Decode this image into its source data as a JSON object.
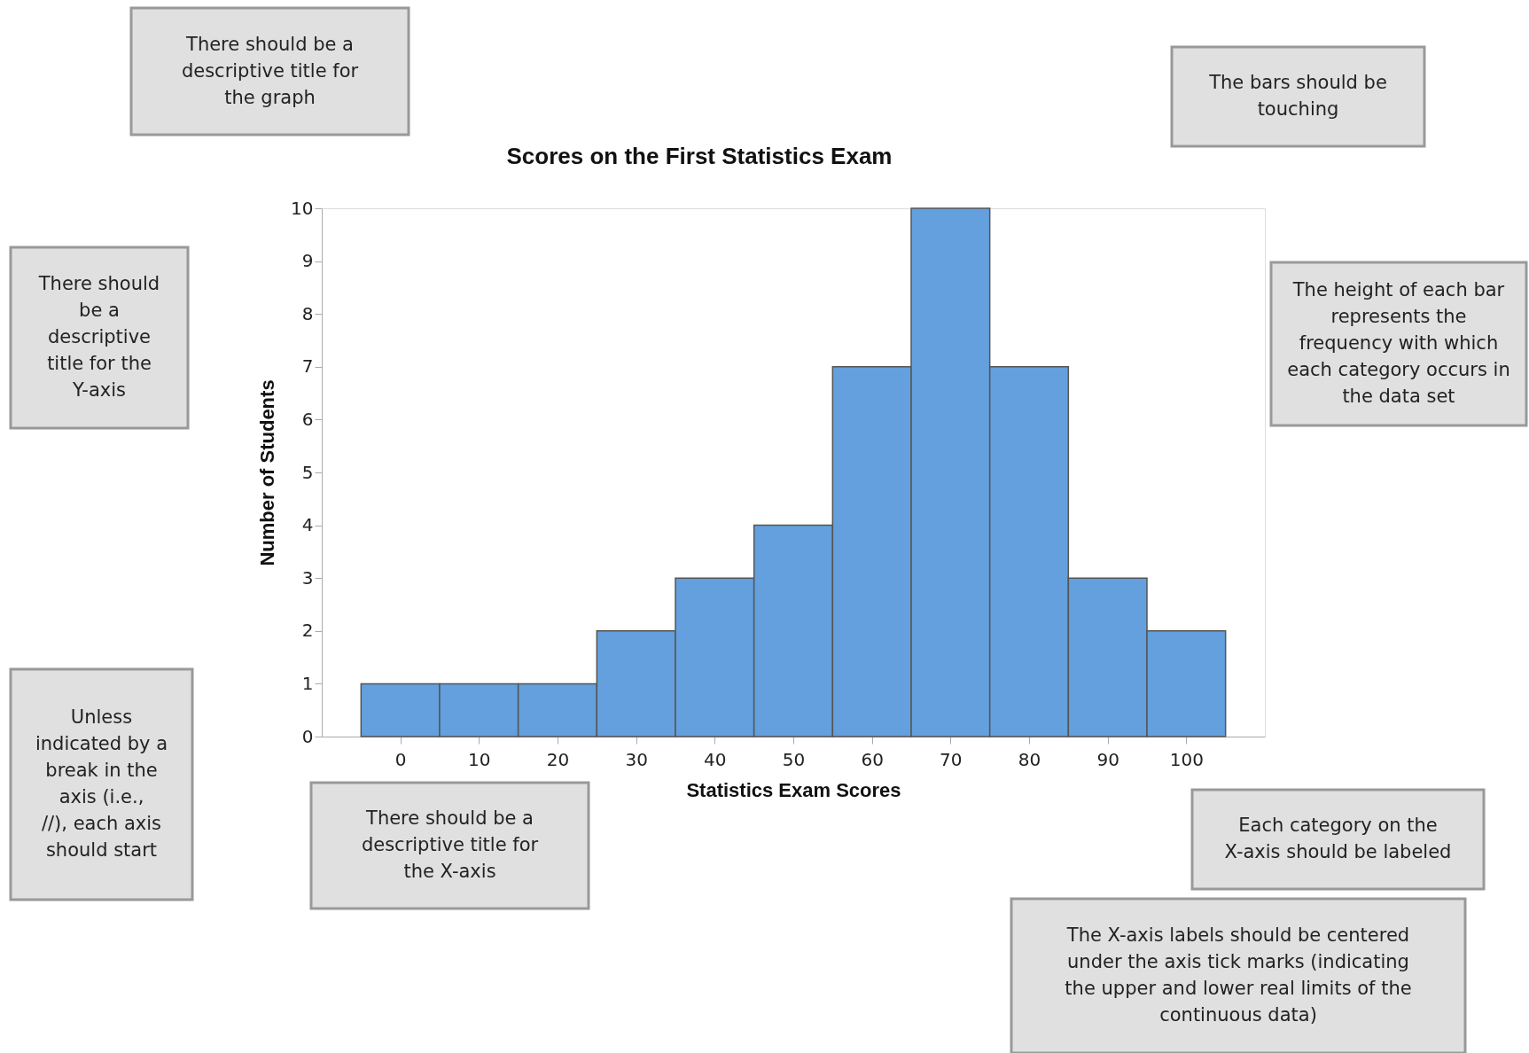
{
  "chart_data": {
    "type": "histogram",
    "title": "Scores on the First Statistics Exam",
    "xlabel": "Statistics Exam Scores",
    "ylabel": "Number of Students",
    "bins": [
      -5,
      5,
      15,
      25,
      35,
      45,
      55,
      65,
      75,
      85,
      95,
      105
    ],
    "values": [
      1,
      1,
      1,
      2,
      3,
      4,
      7,
      10,
      7,
      3,
      2
    ],
    "color": "#63a0dd",
    "xlim": [
      -10,
      110
    ],
    "xticks": [
      0,
      10,
      20,
      30,
      40,
      50,
      60,
      70,
      80,
      90,
      100
    ],
    "ylim": [
      0,
      10
    ],
    "yticks": [
      0,
      1,
      2,
      3,
      4,
      5,
      6,
      7,
      8,
      9,
      10
    ],
    "grid": false,
    "annotations": [
      "There should be a descriptive title for the graph",
      "There should be a descriptive title for the Y-axis",
      "The bars should be touching",
      "The height of each bar represents the frequency with which each category occurs in the data set",
      "Unless indicated by a break in the axis (i.e., //), each axis should start",
      "There should be a descriptive title for the X-axis",
      "Each category on the X-axis should be labeled",
      "The X-axis labels should be centered under the axis tick marks (indicating the upper and lower real limits of the continuous data)"
    ]
  }
}
